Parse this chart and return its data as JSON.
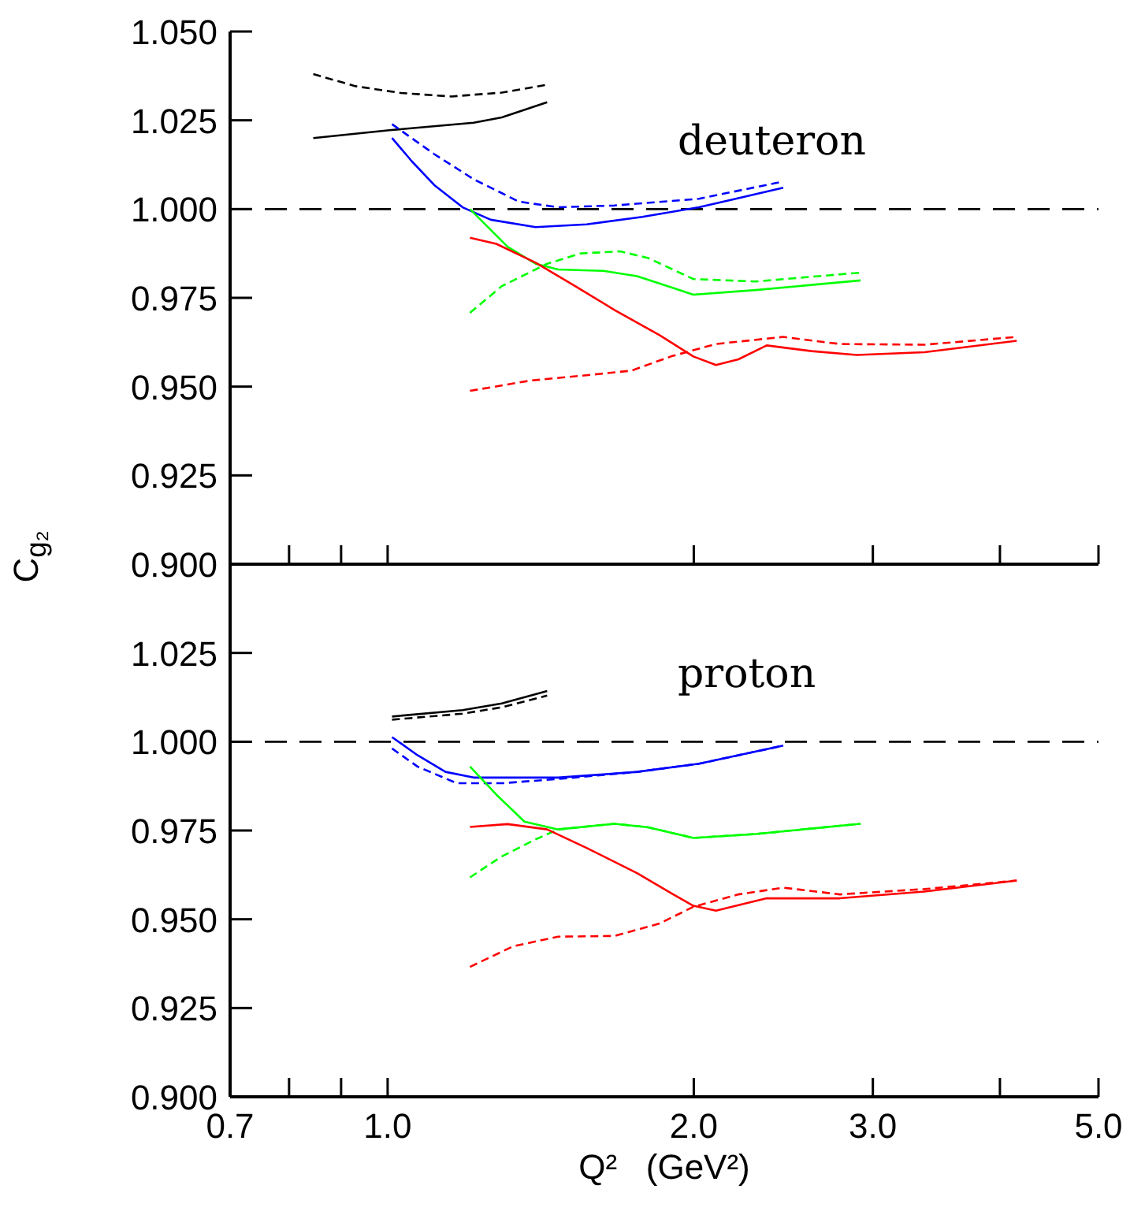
{
  "chart_data": [
    {
      "type": "line",
      "ylabel": "C$_{g₂}$",
      "annotations": [
        "deuteron"
      ],
      "xlim": [
        0.7,
        5
      ],
      "log": "x",
      "tick_labels": "y",
      "grid": false,
      "xticks": [
        {
          "value": 0.7,
          "label": null
        },
        {
          "value": 0.8,
          "label": null
        },
        {
          "value": 0.9,
          "label": null
        },
        {
          "value": 1,
          "label": null
        },
        {
          "value": 2,
          "label": null
        },
        {
          "value": 3,
          "label": null
        },
        {
          "value": 4,
          "label": null
        },
        {
          "value": 5,
          "label": null
        }
      ],
      "ylim": [
        0.9,
        1.05
      ],
      "yticks": [
        {
          "value": 1.05,
          "label": "1.050"
        },
        1.025,
        {
          "value": 1,
          "label": "1.000"
        },
        0.975,
        {
          "value": 0.95,
          "label": "0.950"
        },
        0.925,
        {
          "value": 0.9,
          "label": "0.900"
        }
      ],
      "ref_lines": [
        {
          "axis": "y",
          "value": 1,
          "color": "#000000",
          "line_style": "dashed"
        }
      ],
      "series": [
        {
          "color": "#000000",
          "line_style": "dashed",
          "x": [
            0.845,
            0.93,
            1.03,
            1.155,
            1.295,
            1.435
          ],
          "values": [
            1.038,
            1.0346,
            1.0327,
            1.0317,
            1.0328,
            1.035
          ]
        },
        {
          "color": "#000000",
          "line_style": "solid",
          "x": [
            0.845,
            1.004,
            1.215,
            1.295,
            1.435
          ],
          "values": [
            1.02,
            1.0222,
            1.0243,
            1.0258,
            1.0301
          ]
        },
        {
          "color": "#0000ff",
          "line_style": "solid",
          "x": [
            1.01,
            1.056,
            1.111,
            1.185,
            1.263,
            1.398,
            1.569,
            1.78,
            2.024,
            2.449
          ],
          "values": [
            1.02,
            1.0135,
            1.0068,
            1.0005,
            0.997,
            0.9949,
            0.9957,
            0.9978,
            1.0005,
            1.006
          ]
        },
        {
          "color": "#0000ff",
          "line_style": "dashed",
          "x": [
            1.01,
            1.111,
            1.215,
            1.346,
            1.471,
            1.671,
            2.024,
            2.433
          ],
          "values": [
            1.0239,
            1.0155,
            1.0084,
            1.0021,
            1.0005,
            1.001,
            1.0029,
            1.0076
          ]
        },
        {
          "color": "#00ff00",
          "line_style": "solid",
          "x": [
            1.205,
            1.312,
            1.398,
            1.471,
            1.63,
            1.759,
            1.899,
            1.998,
            2.3,
            2.918
          ],
          "values": [
            1.0,
            0.9894,
            0.9846,
            0.983,
            0.9826,
            0.9811,
            0.978,
            0.9759,
            0.9772,
            0.9799
          ]
        },
        {
          "color": "#00ff00",
          "line_style": "dashed",
          "x": [
            1.205,
            1.295,
            1.435,
            1.548,
            1.693,
            1.804,
            1.998,
            2.3,
            2.918
          ],
          "values": [
            0.9708,
            0.9783,
            0.9846,
            0.9875,
            0.9881,
            0.9862,
            0.9803,
            0.9796,
            0.9821
          ]
        },
        {
          "color": "#ff0000",
          "line_style": "solid",
          "x": [
            1.205,
            1.279,
            1.398,
            1.529,
            1.671,
            1.851,
            1.998,
            2.103,
            2.213,
            2.359,
            2.612,
            2.892,
            3.372,
            4.155
          ],
          "values": [
            0.9919,
            0.9902,
            0.9849,
            0.9783,
            0.9716,
            0.9645,
            0.9585,
            0.9561,
            0.9577,
            0.9616,
            0.96,
            0.9589,
            0.9597,
            0.9629
          ]
        },
        {
          "color": "#ff0000",
          "line_style": "dashed",
          "x": [
            1.205,
            1.381,
            1.569,
            1.737,
            1.899,
            2.103,
            2.449,
            2.784,
            3.372,
            4.155
          ],
          "values": [
            0.9488,
            0.9517,
            0.9532,
            0.9545,
            0.9585,
            0.962,
            0.964,
            0.962,
            0.9618,
            0.964
          ]
        }
      ]
    },
    {
      "type": "line",
      "xlabel": "Q²   (GeV²)",
      "annotations": [
        "proton"
      ],
      "xlim": [
        0.7,
        5
      ],
      "log": "x",
      "grid": false,
      "xticks": [
        0.7,
        {
          "value": 0.8,
          "label": null
        },
        {
          "value": 0.9,
          "label": null
        },
        {
          "value": 1,
          "label": "1.0"
        },
        {
          "value": 2,
          "label": "2.0"
        },
        {
          "value": 3,
          "label": "3.0"
        },
        {
          "value": 4,
          "label": null
        },
        {
          "value": 5,
          "label": "5.0"
        }
      ],
      "ylim": [
        0.9,
        1.05
      ],
      "yticks": [
        {
          "value": 1.05,
          "label": null
        },
        1.025,
        {
          "value": 1,
          "label": "1.000"
        },
        0.975,
        {
          "value": 0.95,
          "label": "0.950"
        },
        0.925,
        {
          "value": 0.9,
          "label": "0.900"
        }
      ],
      "ref_lines": [
        {
          "axis": "y",
          "value": 1,
          "color": "#000000",
          "line_style": "dashed"
        }
      ],
      "series": [
        {
          "color": "#000000",
          "line_style": "solid",
          "x": [
            1.01,
            1.185,
            1.295,
            1.435
          ],
          "values": [
            1.0071,
            1.0089,
            1.0108,
            1.0143
          ]
        },
        {
          "color": "#000000",
          "line_style": "dashed",
          "x": [
            1.01,
            1.185,
            1.295,
            1.435
          ],
          "values": [
            1.0062,
            1.0079,
            1.0097,
            1.013
          ]
        },
        {
          "color": "#0000ff",
          "line_style": "solid",
          "x": [
            1.01,
            1.07,
            1.14,
            1.215,
            1.471,
            1.759,
            2.024,
            2.449
          ],
          "values": [
            1.0013,
            0.9962,
            0.9915,
            0.9899,
            0.9899,
            0.9915,
            0.9938,
            0.9989
          ]
        },
        {
          "color": "#0000ff",
          "line_style": "dashed",
          "x": [
            1.01,
            1.07,
            1.17,
            1.295,
            1.471,
            1.759,
            2.024,
            2.449
          ],
          "values": [
            0.9981,
            0.993,
            0.9883,
            0.9883,
            0.9895,
            0.9915,
            0.9938,
            0.9989
          ]
        },
        {
          "color": "#00ff00",
          "line_style": "solid",
          "x": [
            1.205,
            1.279,
            1.363,
            1.471,
            1.671,
            1.804,
            1.998,
            2.3,
            2.918
          ],
          "values": [
            0.993,
            0.9851,
            0.9775,
            0.9753,
            0.9769,
            0.9759,
            0.9729,
            0.974,
            0.9769
          ]
        },
        {
          "color": "#00ff00",
          "line_style": "dashed",
          "x": [
            1.205,
            1.295,
            1.398,
            1.471,
            1.671,
            1.804,
            1.998,
            2.3,
            2.918
          ],
          "values": [
            0.9618,
            0.9677,
            0.9725,
            0.9753,
            0.9769,
            0.9759,
            0.9729,
            0.974,
            0.9769
          ]
        },
        {
          "color": "#ff0000",
          "line_style": "solid",
          "x": [
            1.205,
            1.312,
            1.435,
            1.569,
            1.759,
            1.899,
            1.998,
            2.103,
            2.359,
            2.784,
            3.372,
            4.155
          ],
          "values": [
            0.976,
            0.9768,
            0.9753,
            0.9701,
            0.963,
            0.9574,
            0.9538,
            0.9524,
            0.9559,
            0.9559,
            0.9578,
            0.9609
          ]
        },
        {
          "color": "#ff0000",
          "line_style": "dashed",
          "x": [
            1.205,
            1.329,
            1.471,
            1.671,
            1.851,
            1.998,
            2.213,
            2.449,
            2.784,
            3.372,
            4.155
          ],
          "values": [
            0.9366,
            0.9424,
            0.9451,
            0.9453,
            0.9488,
            0.9535,
            0.957,
            0.9589,
            0.957,
            0.9585,
            0.9609
          ]
        }
      ]
    }
  ]
}
